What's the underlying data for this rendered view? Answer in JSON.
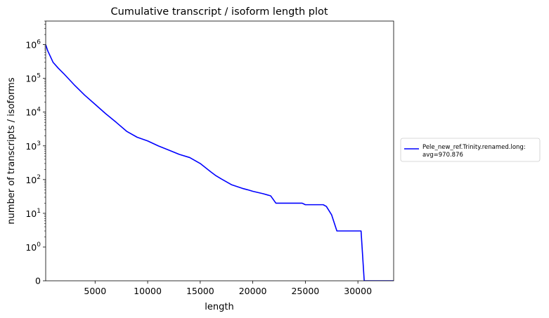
{
  "chart_data": {
    "type": "line",
    "title": "Cumulative transcript / isoform length plot",
    "xlabel": "length",
    "ylabel": "number of transcripts / isoforms",
    "xlim": [
      300,
      33400
    ],
    "y_scale": "symlog",
    "ylim": [
      0,
      5000000
    ],
    "x_ticks": [
      5000,
      10000,
      15000,
      20000,
      25000,
      30000
    ],
    "y_ticks": [
      {
        "value": 1000000,
        "base": "10",
        "exp": "6"
      },
      {
        "value": 100000,
        "base": "10",
        "exp": "5"
      },
      {
        "value": 10000,
        "base": "10",
        "exp": "4"
      },
      {
        "value": 1000,
        "base": "10",
        "exp": "3"
      },
      {
        "value": 100,
        "base": "10",
        "exp": "2"
      },
      {
        "value": 10,
        "base": "10",
        "exp": "1"
      },
      {
        "value": 1,
        "base": "10",
        "exp": "0"
      },
      {
        "value": 0,
        "label": "0"
      }
    ],
    "grid": false,
    "legend": {
      "placement": "outside-right",
      "entries": [
        "Pele_new_ref.Trinity.renamed.long:",
        "avg=970.876"
      ]
    },
    "series": [
      {
        "name": "Pele_new_ref.Trinity.renamed.long: avg=970.876",
        "color": "#0000ff",
        "x": [
          300,
          500,
          1000,
          1500,
          2000,
          3000,
          4000,
          5000,
          6000,
          7000,
          8000,
          9000,
          10000,
          11000,
          12000,
          13000,
          14000,
          15000,
          16000,
          16500,
          17000,
          18000,
          19000,
          19500,
          20000,
          21000,
          21700,
          22200,
          22500,
          23000,
          24000,
          24700,
          25000,
          26000,
          26700,
          27000,
          27500,
          28000,
          29000,
          30000,
          30300,
          30600,
          31000,
          32000,
          33400
        ],
        "y": [
          1000000,
          650000,
          300000,
          200000,
          140000,
          65000,
          32000,
          17000,
          9000,
          5000,
          2700,
          1800,
          1400,
          1000,
          750,
          560,
          450,
          300,
          170,
          130,
          105,
          70,
          55,
          50,
          45,
          38,
          33,
          20,
          20,
          20,
          20,
          20,
          18,
          18,
          18,
          16,
          9,
          3,
          3,
          3,
          3,
          0,
          0,
          0,
          0
        ]
      }
    ]
  }
}
